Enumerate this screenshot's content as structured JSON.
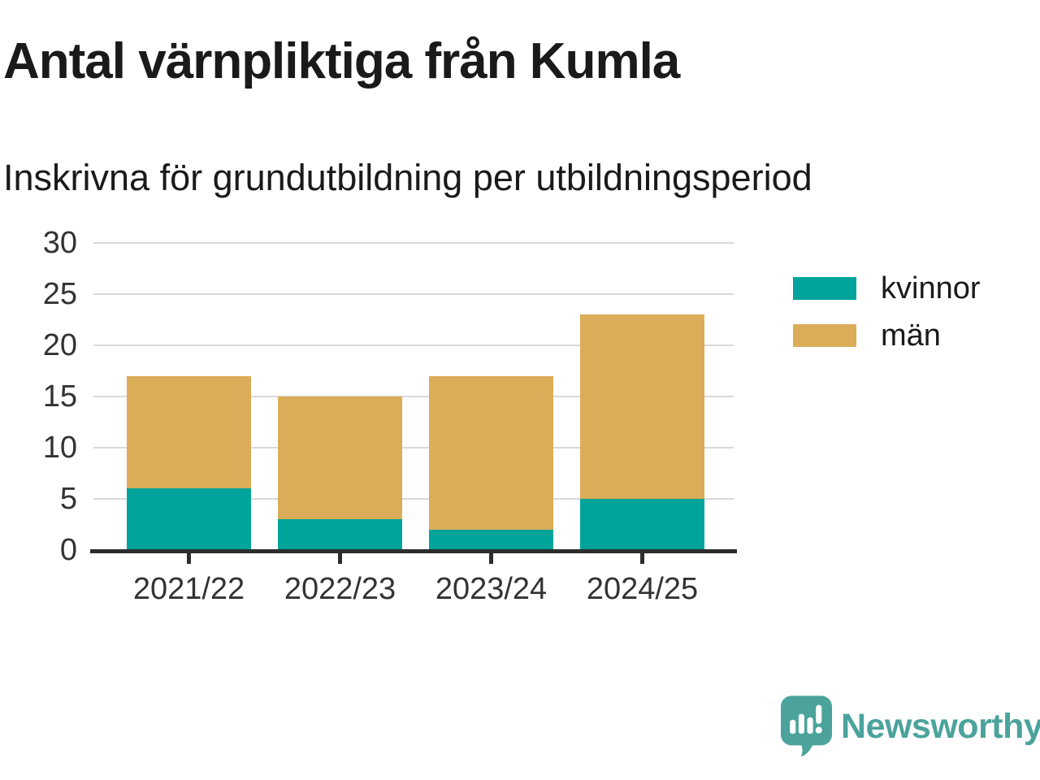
{
  "chart_data": {
    "type": "bar",
    "stacked": true,
    "title": "Antal värnpliktiga från Kumla",
    "subtitle": "Inskrivna för grundutbildning per utbildningsperiod",
    "categories": [
      "2021/22",
      "2022/23",
      "2023/24",
      "2024/25"
    ],
    "series": [
      {
        "name": "kvinnor",
        "color": "#00A49A",
        "values": [
          6,
          3,
          2,
          5
        ]
      },
      {
        "name": "män",
        "color": "#DBAD58",
        "values": [
          11,
          12,
          15,
          18
        ]
      }
    ],
    "ylim": [
      0,
      30
    ],
    "ytick_step": 5,
    "xlabel": "",
    "ylabel": "",
    "grid": true,
    "legend_position": "right-of-plot-top"
  },
  "branding": {
    "logo_text": "Newsworthy",
    "logo_icon": "newsworthy-bar-chart-speech-bubble-icon",
    "logo_color": "#4BA39C"
  },
  "colors": {
    "background": "#FFFFFF",
    "title_text": "#1A1A1A",
    "axis_text": "#333333",
    "gridline": "#D9D9D9",
    "axis_line": "#2D2D2D"
  }
}
